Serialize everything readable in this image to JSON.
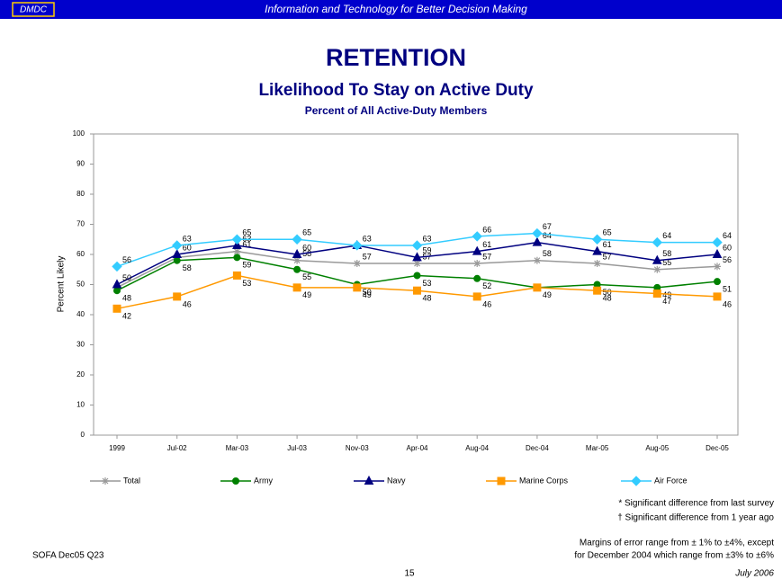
{
  "header": {
    "logo": "DMDC",
    "tagline": "Information and Technology for Better Decision Making"
  },
  "chart_data": {
    "type": "line",
    "title": "RETENTION",
    "subtitle": "Likelihood To Stay on Active Duty",
    "caption": "Percent of All Active-Duty Members",
    "y_label": "Percent Likely",
    "categories": [
      "1999",
      "Jul-02",
      "Mar-03",
      "Jul-03",
      "Nov-03",
      "Apr-04",
      "Aug-04",
      "Dec-04",
      "Mar-05",
      "Aug-05",
      "Dec-05"
    ],
    "ylim": [
      0,
      100
    ],
    "yticks": [
      0,
      10,
      20,
      30,
      40,
      50,
      60,
      70,
      80,
      90,
      100
    ],
    "grid": false,
    "series": [
      {
        "name": "Total",
        "color": "#999999",
        "marker": "star",
        "values": [
          49,
          59,
          61,
          58,
          57,
          57,
          57,
          58,
          57,
          55,
          56
        ],
        "labels": [
          null,
          null,
          61,
          58,
          57,
          57,
          57,
          58,
          57,
          55,
          56
        ]
      },
      {
        "name": "Army",
        "color": "#008000",
        "marker": "circle",
        "values": [
          48,
          58,
          59,
          55,
          50,
          53,
          52,
          49,
          50,
          49,
          51
        ],
        "labels": [
          48,
          58,
          59,
          55,
          50,
          53,
          52,
          null,
          50,
          49,
          51
        ]
      },
      {
        "name": "Navy",
        "color": "#000080",
        "marker": "triangle",
        "values": [
          50,
          60,
          63,
          60,
          63,
          59,
          61,
          64,
          61,
          58,
          60
        ],
        "labels": [
          50,
          60,
          63,
          60,
          null,
          59,
          61,
          64,
          61,
          58,
          60
        ]
      },
      {
        "name": "Marine Corps",
        "color": "#ff9900",
        "marker": "square",
        "values": [
          42,
          46,
          53,
          49,
          49,
          48,
          46,
          49,
          48,
          47,
          46
        ],
        "labels": [
          42,
          46,
          53,
          49,
          49,
          48,
          46,
          49,
          48,
          47,
          46
        ]
      },
      {
        "name": "Air Force",
        "color": "#33ccff",
        "marker": "diamond",
        "values": [
          56,
          63,
          65,
          65,
          63,
          63,
          66,
          67,
          65,
          64,
          64
        ],
        "labels": [
          56,
          63,
          65,
          65,
          63,
          63,
          66,
          67,
          65,
          64,
          64
        ]
      }
    ]
  },
  "footnotes": [
    "* Significant difference from last survey",
    "† Significant difference from 1 year ago"
  ],
  "source": "SOFA Dec05 Q23",
  "margins": [
    "Margins of error range from ± 1% to ±4%, except",
    "for December 2004 which range from ±3% to ±6%"
  ],
  "page_number": "15",
  "date": "July 2006"
}
